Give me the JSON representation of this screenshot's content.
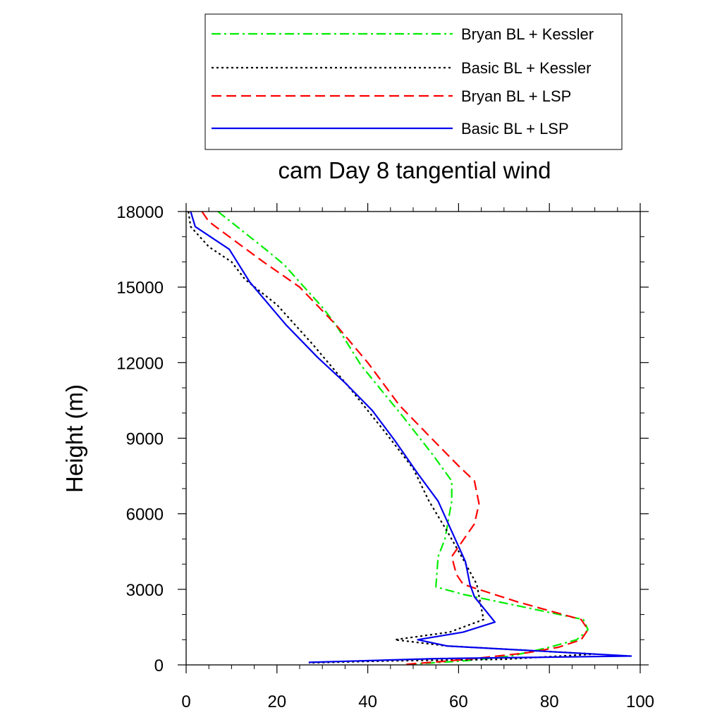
{
  "chart_data": {
    "type": "line",
    "title": "cam Day 8 tangential wind",
    "xlabel": "",
    "ylabel": "Height (m)",
    "xlim": [
      0,
      100
    ],
    "ylim": [
      0,
      18000
    ],
    "x_ticks": [
      "0",
      "20",
      "40",
      "60",
      "80",
      "100"
    ],
    "y_ticks": [
      "0",
      "3000",
      "6000",
      "9000",
      "12000",
      "15000",
      "18000"
    ],
    "legend_position": "top",
    "grid": false,
    "series": [
      {
        "name": "Bryan BL + Kessler",
        "color": "#00ee00",
        "style": "dashdot",
        "x": [
          7.0,
          17.5,
          21.5,
          26.0,
          30.0,
          33.0,
          38.5,
          48.0,
          54.5,
          58.5,
          58.5,
          57.0,
          55.5,
          55.0,
          61.0,
          87.5,
          88.5,
          88.0,
          86.0,
          80.0,
          71.5,
          62.0,
          50.0
        ],
        "y": [
          18000,
          16500,
          15900,
          15000,
          14200,
          13500,
          11900,
          9800,
          8300,
          7300,
          6500,
          5000,
          4300,
          3100,
          2800,
          1800,
          1400,
          1300,
          1000,
          700,
          350,
          170,
          30
        ]
      },
      {
        "name": "Basic BL + Kessler",
        "color": "#000000",
        "style": "dotted",
        "x": [
          0.5,
          1.0,
          5.0,
          10.0,
          13.0,
          20.0,
          28.0,
          36.0,
          44.0,
          50.0,
          53.5,
          57.5,
          61.0,
          64.0,
          65.5,
          58.0,
          46.0,
          57.5,
          90.0,
          70.0,
          45.0,
          27.0
        ],
        "y": [
          18000,
          17400,
          16600,
          16000,
          15300,
          14300,
          12700,
          11000,
          9200,
          7800,
          6500,
          5300,
          4200,
          3200,
          1800,
          1300,
          1000,
          750,
          430,
          220,
          160,
          80
        ]
      },
      {
        "name": "Bryan BL + LSP",
        "color": "#ff0000",
        "style": "dashed",
        "x": [
          3.5,
          5.0,
          11.0,
          17.0,
          25.0,
          33.0,
          40.0,
          47.0,
          54.0,
          60.0,
          63.5,
          64.5,
          63.5,
          58.5,
          59.5,
          61.0,
          73.0,
          87.0,
          88.5,
          87.0,
          82.0,
          75.0,
          65.0,
          56.0,
          48.0
        ],
        "y": [
          18000,
          17600,
          16800,
          16000,
          15000,
          13500,
          12000,
          10300,
          9000,
          7900,
          7300,
          6400,
          5600,
          4300,
          3600,
          3200,
          2500,
          1800,
          1400,
          1000,
          700,
          480,
          280,
          130,
          20
        ]
      },
      {
        "name": "Basic BL + LSP",
        "color": "#0000ee",
        "style": "solid",
        "x": [
          1.0,
          2.0,
          9.5,
          14.0,
          22.0,
          29.0,
          35.0,
          41.0,
          46.0,
          51.0,
          55.5,
          58.5,
          61.5,
          62.5,
          63.5,
          68.0,
          61.0,
          51.0,
          57.5,
          98.0,
          55.0,
          27.0
        ],
        "y": [
          18000,
          17400,
          16500,
          15200,
          13500,
          12200,
          11200,
          10100,
          8900,
          7600,
          6500,
          5300,
          4100,
          3200,
          2700,
          1700,
          1300,
          1000,
          750,
          350,
          250,
          100
        ]
      }
    ]
  }
}
